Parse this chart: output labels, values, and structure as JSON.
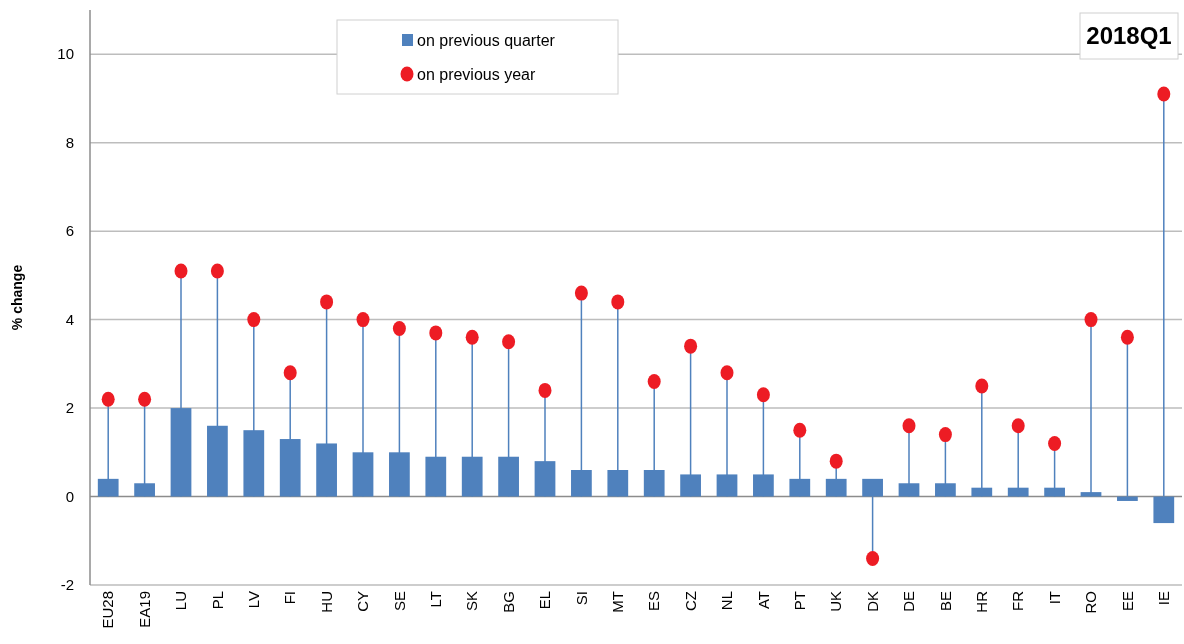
{
  "chart_data": {
    "type": "bar",
    "title": "2018Q1",
    "ylabel": "% change",
    "categories": [
      "EU28",
      "EA19",
      "LU",
      "PL",
      "LV",
      "FI",
      "HU",
      "CY",
      "SE",
      "LT",
      "SK",
      "BG",
      "EL",
      "SI",
      "MT",
      "ES",
      "CZ",
      "NL",
      "AT",
      "PT",
      "UK",
      "DK",
      "DE",
      "BE",
      "HR",
      "FR",
      "IT",
      "RO",
      "EE",
      "IE"
    ],
    "series": [
      {
        "name": "on previous quarter",
        "color": "#4f81bd",
        "values": [
          0.4,
          0.3,
          2.0,
          1.6,
          1.5,
          1.3,
          1.2,
          1.0,
          1.0,
          0.9,
          0.9,
          0.9,
          0.8,
          0.6,
          0.6,
          0.6,
          0.5,
          0.5,
          0.5,
          0.4,
          0.4,
          0.4,
          0.3,
          0.3,
          0.2,
          0.2,
          0.2,
          0.1,
          -0.1,
          -0.6
        ]
      },
      {
        "name": "on previous year",
        "type": "lollipop",
        "marker": "circle",
        "color": "#ed1c24",
        "values": [
          2.2,
          2.2,
          5.1,
          5.1,
          4.0,
          2.8,
          4.4,
          4.0,
          3.8,
          3.7,
          3.6,
          3.5,
          2.4,
          4.6,
          4.4,
          2.6,
          3.4,
          2.8,
          2.3,
          1.5,
          0.8,
          -1.4,
          1.6,
          1.4,
          2.5,
          1.6,
          1.2,
          4.0,
          3.6,
          9.1
        ]
      }
    ],
    "ylim": [
      -2,
      11
    ],
    "yticks": [
      -2,
      0,
      2,
      4,
      6,
      8,
      10
    ],
    "grid": "y",
    "legend": "top"
  }
}
